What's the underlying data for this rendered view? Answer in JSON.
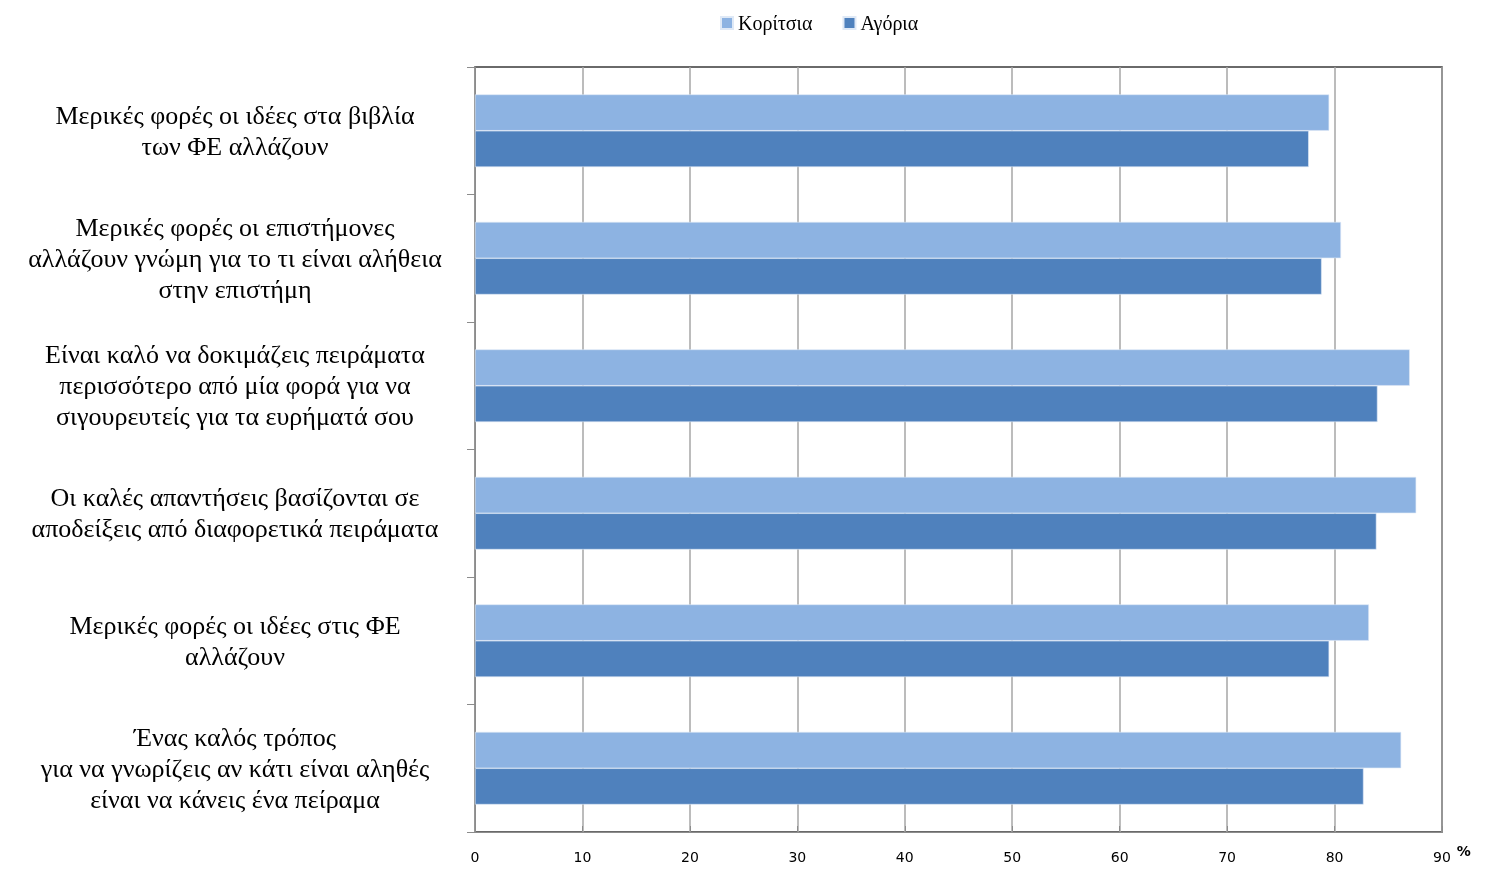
{
  "chart_data": {
    "type": "bar",
    "orientation": "horizontal",
    "categories": [
      "Μερικές φορές οι ιδέες στα βιβλία\nτων ΦΕ αλλάζουν",
      "Μερικές φορές οι επιστήμονες\nαλλάζουν γνώμη για το τι είναι αλήθεια\nστην επιστήμη",
      "Είναι καλό να δοκιμάζεις πειράματα\nπερισσότερο από μία φορά για να\nσιγουρευτείς για τα ευρήματά σου",
      "Οι καλές απαντήσεις βασίζονται σε\nαποδείξεις από διαφορετικά πειράματα",
      "Μερικές φορές οι ιδέες στις ΦΕ\nαλλάζουν",
      "Ένας καλός τρόπος\nγια να γνωρίζεις αν κάτι είναι αληθές\nείναι να κάνεις ένα πείραμα"
    ],
    "series": [
      {
        "name": "Κορίτσια",
        "color": "#8db3e2",
        "values": [
          79.5,
          80.6,
          87.0,
          87.6,
          83.2,
          86.2
        ]
      },
      {
        "name": "Αγόρια",
        "color": "#4f81bd",
        "values": [
          77.6,
          78.8,
          84.0,
          83.9,
          79.5,
          82.7
        ]
      }
    ],
    "xlabel": "%",
    "xlim": [
      0,
      90
    ],
    "xticks": [
      0,
      10,
      20,
      30,
      40,
      50,
      60,
      70,
      80,
      90
    ],
    "grid": "x",
    "legend": "top"
  }
}
